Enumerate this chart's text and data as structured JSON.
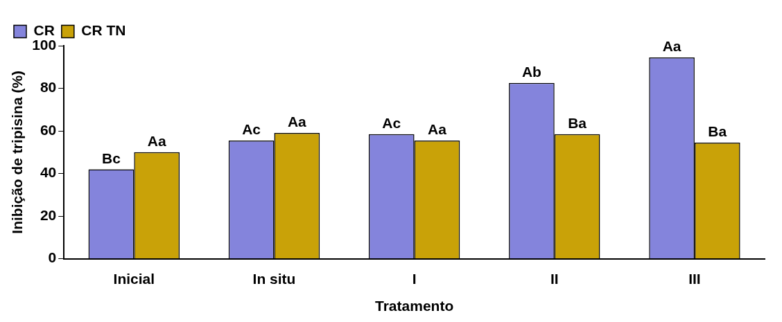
{
  "chart_data": {
    "type": "bar",
    "xlabel": "Tratamento",
    "ylabel": "Inibição de tripisina (%)",
    "categories": [
      "Inicial",
      "In situ",
      "I",
      "II",
      "III"
    ],
    "series": [
      {
        "name": "CR",
        "color": "#8484dc",
        "values": [
          42,
          55.5,
          58.5,
          82.5,
          94.5
        ],
        "value_labels": [
          "Bc",
          "Ac",
          "Ac",
          "Ab",
          "Aa"
        ]
      },
      {
        "name": "CR TN",
        "color": "#c9a208",
        "values": [
          50,
          59,
          55.5,
          58.5,
          54.5
        ],
        "value_labels": [
          "Aa",
          "Aa",
          "Aa",
          "Ba",
          "Ba"
        ]
      }
    ],
    "ylim": [
      0,
      100
    ],
    "yticks": [
      0,
      20,
      40,
      60,
      80,
      100
    ],
    "grid": false,
    "legend": "top left"
  }
}
